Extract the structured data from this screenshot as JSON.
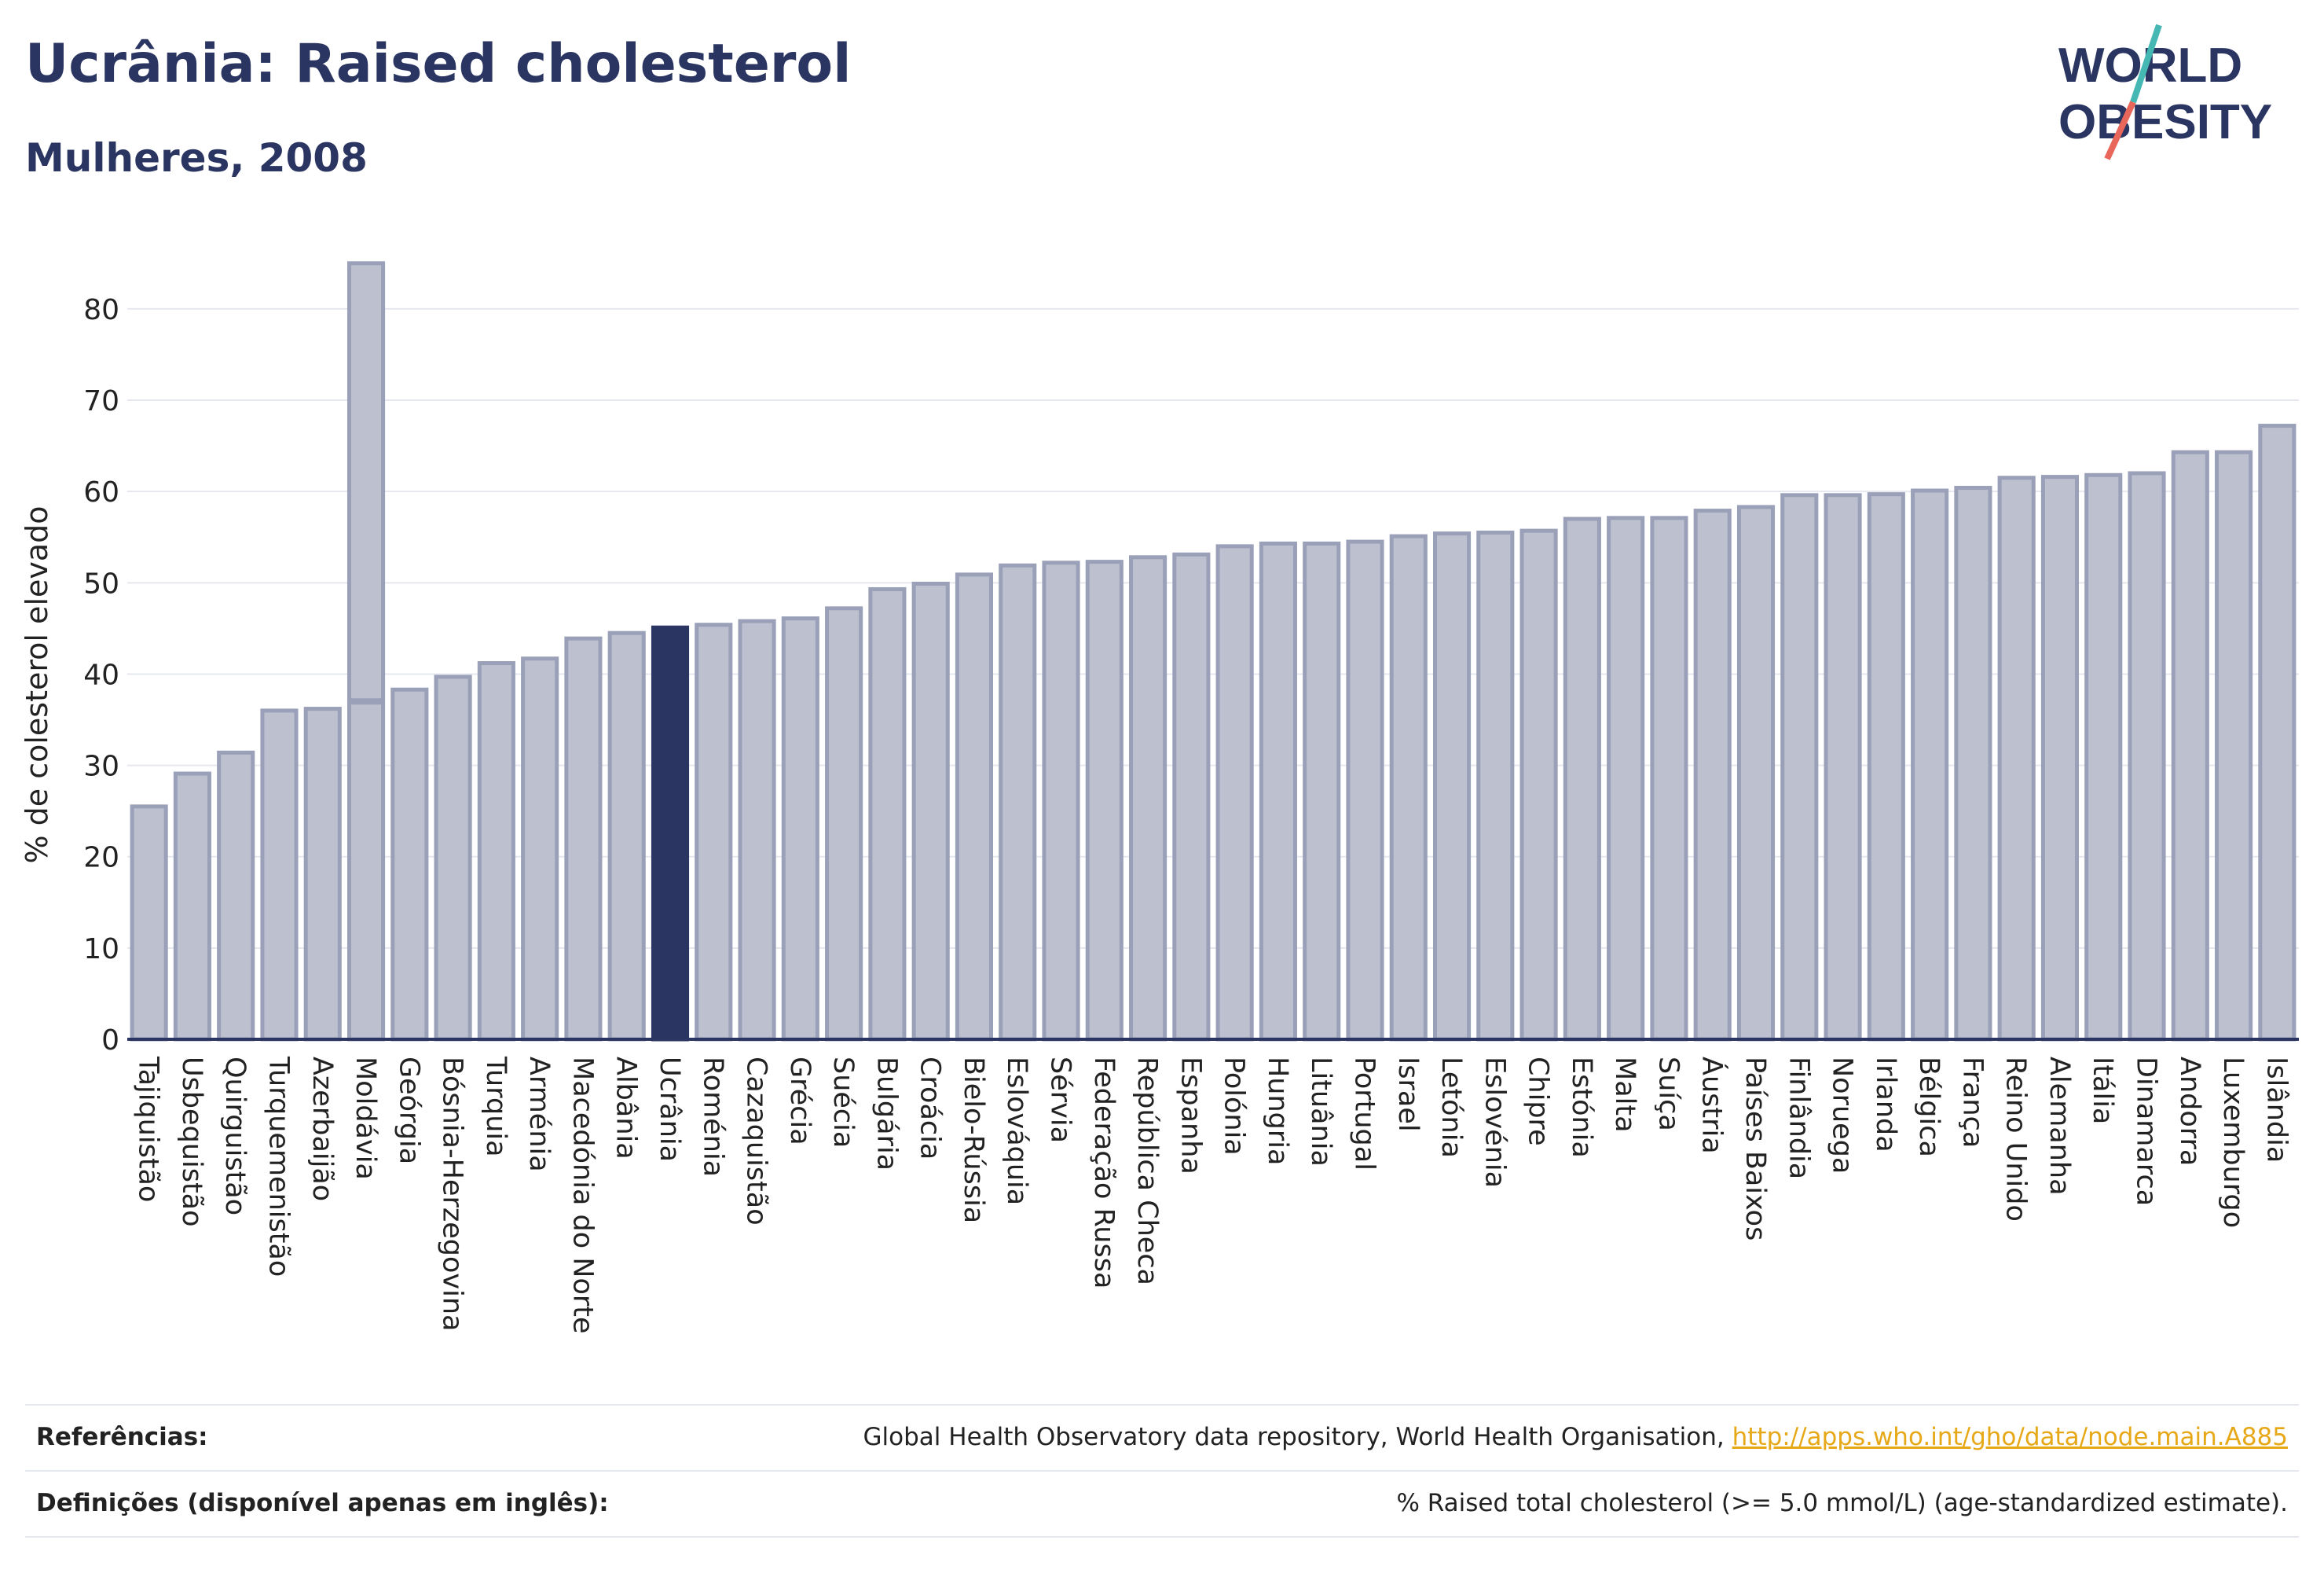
{
  "header": {
    "title": "Ucrânia: Raised cholesterol",
    "subtitle": "Mulheres, 2008"
  },
  "logo": {
    "line1": "WORLD",
    "line2": "OBESITY",
    "slash_colors": [
      "#45b8b3",
      "#e8675a"
    ]
  },
  "colors": {
    "bar": "#bcc0cf",
    "bar_edge": "#9aa0b8",
    "highlight": "#2b3561",
    "text": "#2b3561",
    "grid": "#e6e8ef"
  },
  "chart_data": {
    "type": "bar",
    "xlabel": "",
    "ylabel": "% de colesterol elevado",
    "ylim": [
      0,
      88
    ],
    "yticks": [
      0,
      10,
      20,
      30,
      40,
      50,
      60,
      70,
      80
    ],
    "grid": true,
    "highlight": "Ucrânia",
    "categories": [
      "Tajiquistão",
      "Usbequistão",
      "Quirguistão",
      "Turquemenistão",
      "Azerbaijão",
      "Moldávia",
      "Geórgia",
      "Bósnia-Herzegovina",
      "Turquia",
      "Arménia",
      "Macedónia do Norte",
      "Albânia",
      "Ucrânia",
      "Roménia",
      "Cazaquistão",
      "Grécia",
      "Suécia",
      "Bulgária",
      "Croácia",
      "Bielo-Rússia",
      "Eslováquia",
      "Sérvia",
      "Federação Russa",
      "República Checa",
      "Espanha",
      "Polónia",
      "Hungria",
      "Lituânia",
      "Portugal",
      "Israel",
      "Letónia",
      "Eslovénia",
      "Chipre",
      "Estónia",
      "Malta",
      "Suíça",
      "Áustria",
      "Países Baixos",
      "Finlândia",
      "Noruega",
      "Irlanda",
      "Bélgica",
      "França",
      "Reino Unido",
      "Alemanha",
      "Itália",
      "Dinamarca",
      "Andorra",
      "Luxemburgo",
      "Islândia"
    ],
    "values": [
      25.5,
      29.1,
      31.4,
      36.0,
      36.2,
      37.0,
      38.3,
      39.7,
      41.2,
      41.7,
      43.9,
      44.5,
      45.1,
      45.4,
      45.8,
      46.1,
      47.2,
      49.3,
      49.9,
      50.9,
      51.9,
      52.2,
      52.3,
      52.8,
      53.1,
      54.0,
      54.3,
      54.3,
      54.5,
      55.1,
      55.4,
      55.5,
      55.7,
      57.0,
      57.1,
      57.1,
      57.9,
      58.3,
      59.6,
      59.6,
      59.7,
      60.1,
      60.4,
      61.5,
      61.6,
      61.8,
      62.0,
      64.3,
      64.3,
      67.2
    ],
    "range_bar": {
      "category": "Moldávia",
      "low": 37.0,
      "high": 85.0
    }
  },
  "footer": {
    "references_label": "Referências:",
    "references_text": "Global Health Observatory data repository, World Health Organisation, ",
    "references_link": "http://apps.who.int/gho/data/node.main.A885",
    "definitions_label": "Definições (disponível apenas em inglês):",
    "definitions_text": "% Raised total cholesterol (>= 5.0 mmol/L) (age-standardized estimate)."
  }
}
